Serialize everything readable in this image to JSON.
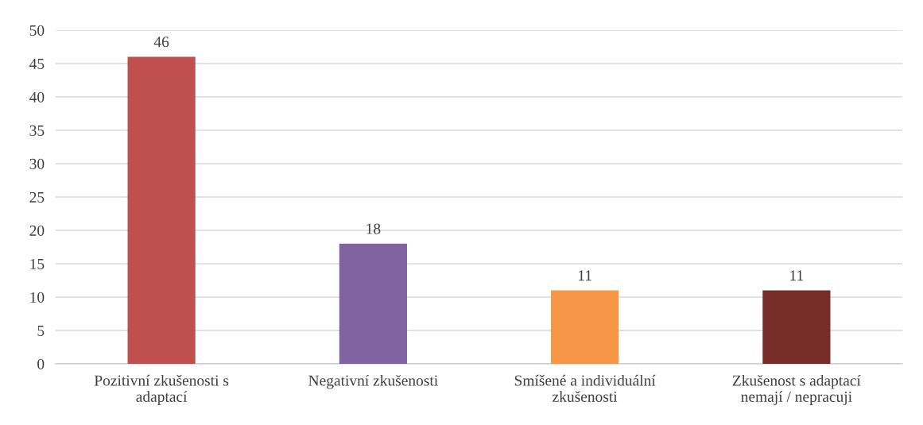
{
  "chart_data": {
    "type": "bar",
    "categories": [
      "Pozitivní zkušenosti s\nadaptací",
      "Negativní zkušenosti",
      "Smíšené a individuální\nzkušenosti",
      "Zkušenost s adaptací\nnemají / nepracuji"
    ],
    "values": [
      46,
      18,
      11,
      11
    ],
    "colors": [
      "#c0504d",
      "#8064a2",
      "#f79646",
      "#772c2a"
    ],
    "ylim": [
      0,
      50
    ],
    "yticks": [
      0,
      5,
      10,
      15,
      20,
      25,
      30,
      35,
      40,
      45,
      50
    ],
    "grid": "y",
    "data_labels": true
  }
}
